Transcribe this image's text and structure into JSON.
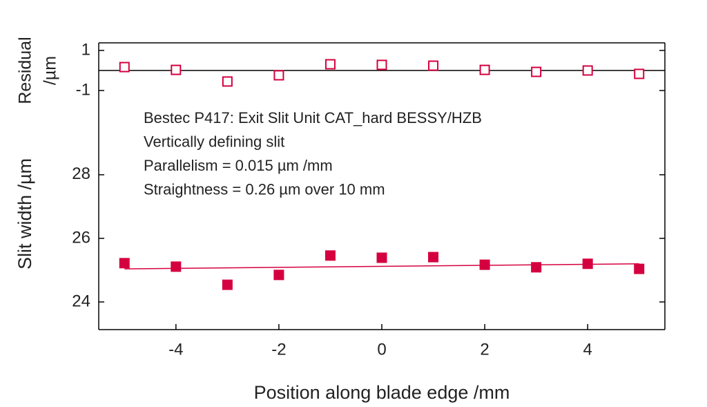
{
  "chart_data": [
    {
      "type": "scatter",
      "ylabel": [
        "Residual",
        "/µm"
      ],
      "x": [
        -5,
        -4,
        -3,
        -2,
        -1,
        0,
        1,
        2,
        3,
        4,
        5
      ],
      "series": [
        {
          "color": "#d5003f",
          "marker": "open-square",
          "values": [
            0.17,
            0.03,
            -0.55,
            -0.24,
            0.31,
            0.28,
            0.24,
            0.03,
            -0.07,
            0,
            -0.17
          ]
        }
      ],
      "reference_line": 0,
      "xlim": [
        -5.5,
        5.5
      ],
      "ylim": [
        -1.38,
        1.38
      ],
      "yticks": [
        1,
        -1
      ],
      "xticks": [
        -4,
        -2,
        0,
        2,
        4
      ]
    },
    {
      "type": "scatter",
      "ylabel": "Slit width /µm",
      "xlabel": "Position along blade edge /mm",
      "annotations": [
        "Bestec P417: Exit Slit Unit CAT_hard BESSY/HZB",
        "Vertically defining slit",
        "Parallelism = 0.015 µm /mm",
        "Straightness = 0.26 µm over 10 mm"
      ],
      "x": [
        -5,
        -4,
        -3,
        -2,
        -1,
        0,
        1,
        2,
        3,
        4,
        5
      ],
      "series": [
        {
          "color": "#d5003f",
          "marker": "filled-square",
          "values": [
            25.22,
            25.11,
            24.54,
            24.85,
            25.46,
            25.39,
            25.41,
            25.17,
            25.09,
            25.2,
            25.04
          ]
        }
      ],
      "fit": {
        "x": [
          -5,
          5
        ],
        "values": [
          25.04,
          25.2
        ],
        "color": "#d5003f"
      },
      "xlim": [
        -5.5,
        5.5
      ],
      "ylim": [
        23.13,
        30.41
      ],
      "yticks": [
        24,
        26,
        28
      ],
      "xticks": [
        -4,
        -2,
        0,
        2,
        4
      ]
    }
  ]
}
